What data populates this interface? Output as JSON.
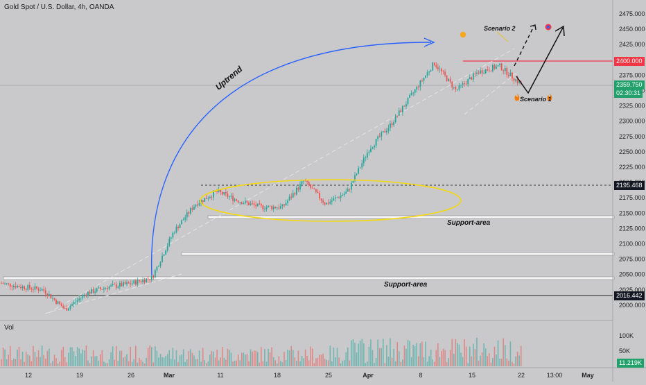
{
  "symbol": "Gold Spot / U.S. Dollar, 4h, OANDA",
  "volume_label": "Vol",
  "price_axis": {
    "ticks": [
      "2475.000",
      "2450.000",
      "2425.000",
      "2400.000",
      "2375.000",
      "2350.000",
      "2325.000",
      "2300.000",
      "2275.000",
      "2250.000",
      "2225.000",
      "2200.000",
      "2175.000",
      "2150.000",
      "2125.000",
      "2100.000",
      "2075.000",
      "2050.000",
      "2025.000",
      "2000.000"
    ]
  },
  "tags": {
    "resistance": "2400.000",
    "current_price": "2359.750",
    "countdown": "02:30:31",
    "dotted_level": "2195.468",
    "low_level": "2016.442",
    "volume": "11.219K"
  },
  "volume_axis": [
    "100K",
    "50K"
  ],
  "time_axis": [
    "12",
    "19",
    "26",
    "Mar",
    "11",
    "18",
    "25",
    "Apr",
    "8",
    "15",
    "22",
    "13:00",
    "May"
  ],
  "annotations": {
    "uptrend": "Uptrend",
    "support_upper": "Support-area",
    "support_lower": "Support-area",
    "scenario1": "Scenario 1",
    "scenario2": "Scenario 2"
  },
  "colors": {
    "up": "#26a69a",
    "down": "#ef5350",
    "resistance": "#f23645",
    "uptrend_arrow": "#2962ff",
    "ellipse": "#f5d90a",
    "background": "#c9c9cc"
  },
  "chart_data": {
    "type": "candlestick",
    "title": "Gold Spot / U.S. Dollar, 4h, OANDA",
    "timeframe": "4h",
    "y_range": [
      1987,
      2487
    ],
    "levels": [
      {
        "label": "resistance",
        "value": 2400.0
      },
      {
        "label": "dotted",
        "value": 2195.468
      },
      {
        "label": "support",
        "value": 2016.442
      }
    ],
    "support_zones": [
      [
        2145,
        2148
      ],
      [
        2084,
        2088
      ],
      [
        2044,
        2048
      ]
    ],
    "price_path": [
      {
        "t": "Feb 5",
        "price": 2036
      },
      {
        "t": "Feb 8",
        "price": 2030
      },
      {
        "t": "Feb 12",
        "price": 2025
      },
      {
        "t": "Feb 14",
        "price": 1993
      },
      {
        "t": "Feb 19",
        "price": 2020
      },
      {
        "t": "Feb 23",
        "price": 2030
      },
      {
        "t": "Feb 27",
        "price": 2035
      },
      {
        "t": "Mar 1",
        "price": 2045
      },
      {
        "t": "Mar 4",
        "price": 2120
      },
      {
        "t": "Mar 7",
        "price": 2165
      },
      {
        "t": "Mar 10",
        "price": 2185
      },
      {
        "t": "Mar 13",
        "price": 2170
      },
      {
        "t": "Mar 16",
        "price": 2160
      },
      {
        "t": "Mar 19",
        "price": 2160
      },
      {
        "t": "Mar 21",
        "price": 2203
      },
      {
        "t": "Mar 24",
        "price": 2165
      },
      {
        "t": "Mar 27",
        "price": 2185
      },
      {
        "t": "Apr 1",
        "price": 2255
      },
      {
        "t": "Apr 5",
        "price": 2295
      },
      {
        "t": "Apr 9",
        "price": 2345
      },
      {
        "t": "Apr 12",
        "price": 2395
      },
      {
        "t": "Apr 14",
        "price": 2350
      },
      {
        "t": "Apr 17",
        "price": 2380
      },
      {
        "t": "Apr 19",
        "price": 2390
      },
      {
        "t": "Apr 22",
        "price": 2360
      }
    ],
    "scenarios": [
      {
        "name": "Scenario 1",
        "path": [
          2360,
          2330,
          2450
        ]
      },
      {
        "name": "Scenario 2",
        "path": [
          2360,
          2420,
          2450
        ]
      }
    ]
  }
}
